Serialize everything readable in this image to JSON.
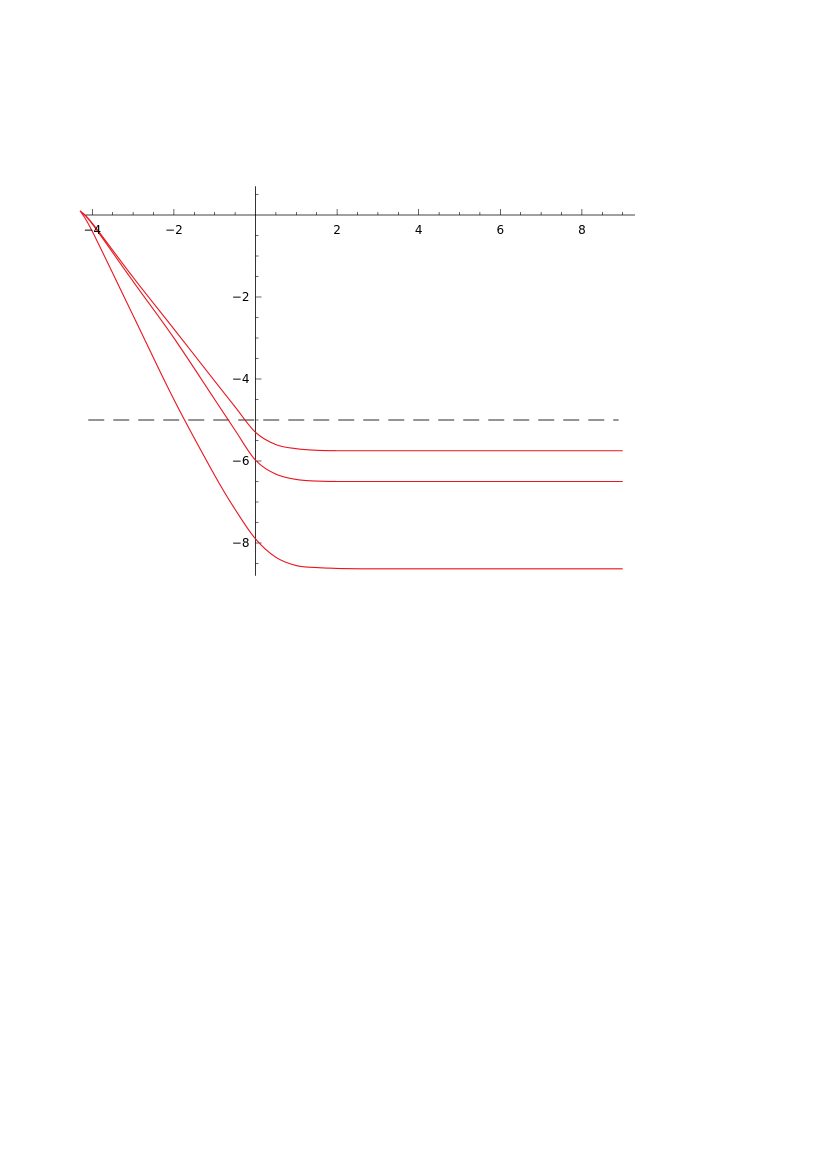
{
  "chart_data": {
    "type": "line",
    "xlim": [
      -4.2,
      9.3
    ],
    "ylim": [
      -8.8,
      0.7
    ],
    "grid": false,
    "x_ticks": [
      {
        "value": -4,
        "label": "-4"
      },
      {
        "value": -2,
        "label": "-2"
      },
      {
        "value": 2,
        "label": "2"
      },
      {
        "value": 4,
        "label": "4"
      },
      {
        "value": 6,
        "label": "6"
      },
      {
        "value": 8,
        "label": "8"
      }
    ],
    "y_ticks": [
      {
        "value": -2,
        "label": "-2"
      },
      {
        "value": -4,
        "label": "-4"
      },
      {
        "value": -6,
        "label": "-6"
      },
      {
        "value": -8,
        "label": "-8"
      }
    ],
    "series": [
      {
        "color": "#e8141e",
        "x": [
          -4.3,
          -4.0,
          -3.0,
          -2.0,
          -1.0,
          -0.5,
          0.0,
          0.5,
          1.0,
          1.5,
          2.0,
          3.0,
          5.0,
          9.0
        ],
        "y": [
          0.1,
          -0.2,
          -1.52,
          -2.78,
          -4.05,
          -4.68,
          -5.3,
          -5.6,
          -5.7,
          -5.74,
          -5.75,
          -5.75,
          -5.75,
          -5.75
        ]
      },
      {
        "color": "#e8141e",
        "x": [
          -4.3,
          -4.0,
          -3.0,
          -2.0,
          -1.0,
          -0.5,
          0.0,
          0.5,
          1.0,
          1.5,
          2.0,
          3.0,
          5.0,
          9.0
        ],
        "y": [
          0.1,
          -0.22,
          -1.62,
          -3.0,
          -4.5,
          -5.25,
          -5.98,
          -6.32,
          -6.45,
          -6.49,
          -6.5,
          -6.5,
          -6.5,
          -6.5
        ]
      },
      {
        "color": "#e8141e",
        "x": [
          -4.3,
          -4.0,
          -3.0,
          -2.0,
          -1.0,
          -0.5,
          0.0,
          0.5,
          1.0,
          1.5,
          2.0,
          3.0,
          5.0,
          9.0
        ],
        "y": [
          0.1,
          -0.4,
          -2.45,
          -4.5,
          -6.35,
          -7.18,
          -7.9,
          -8.35,
          -8.55,
          -8.6,
          -8.62,
          -8.63,
          -8.63,
          -8.63
        ]
      }
    ],
    "reference_line": {
      "y": -5.0,
      "x_range": [
        -4.1,
        8.9
      ],
      "color": "#555555",
      "style": "dashed"
    }
  }
}
